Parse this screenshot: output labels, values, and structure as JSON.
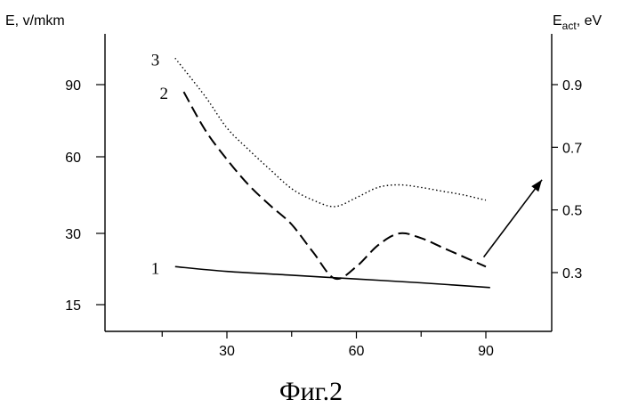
{
  "chart_data": {
    "type": "line",
    "caption": "Фиг.2",
    "xlabel": "",
    "ylabel_left": "E, v/mkm",
    "ylabel_right_main": "E",
    "ylabel_right_sub": "act",
    "ylabel_right_tail": ", eV",
    "xlim": [
      10,
      103
    ],
    "x_ticks": [
      {
        "value": 30,
        "label": "30"
      },
      {
        "value": 60,
        "label": "60"
      },
      {
        "value": 90,
        "label": "90"
      }
    ],
    "y_left_ticks": [
      {
        "value": 15,
        "label": "15"
      },
      {
        "value": 30,
        "label": "30"
      },
      {
        "value": 60,
        "label": "60"
      },
      {
        "value": 90,
        "label": "90"
      }
    ],
    "y_right_ticks": [
      {
        "value": 0.3,
        "label": "0.3"
      },
      {
        "value": 0.5,
        "label": "0.5"
      },
      {
        "value": 0.7,
        "label": "0.7"
      },
      {
        "value": 0.9,
        "label": "0.9"
      }
    ],
    "grid": false,
    "series": [
      {
        "name": "1",
        "style": "solid",
        "x": [
          18,
          30,
          45,
          60,
          75,
          91
        ],
        "y": [
          23.0,
          22.0,
          21.2,
          20.4,
          19.6,
          18.6
        ]
      },
      {
        "name": "2",
        "style": "dashed",
        "x": [
          20,
          25,
          30,
          35,
          40,
          45,
          50,
          55,
          60,
          65,
          70,
          75,
          80,
          85,
          90
        ],
        "y": [
          87,
          71,
          59,
          49,
          41,
          33.5,
          26,
          20.5,
          23,
          27.5,
          30,
          29,
          27,
          25,
          23
        ]
      },
      {
        "name": "3",
        "style": "dotted",
        "x": [
          18,
          25,
          30,
          35,
          40,
          45,
          50,
          55,
          60,
          65,
          70,
          75,
          80,
          85,
          90
        ],
        "y": [
          101,
          85,
          72,
          63,
          55,
          47.5,
          43,
          40.5,
          44,
          48,
          49,
          48,
          46.5,
          45,
          43
        ]
      }
    ],
    "arrow": {
      "from_x": 89.5,
      "from_y": 25,
      "to_x": 103,
      "to_y": 51
    }
  }
}
